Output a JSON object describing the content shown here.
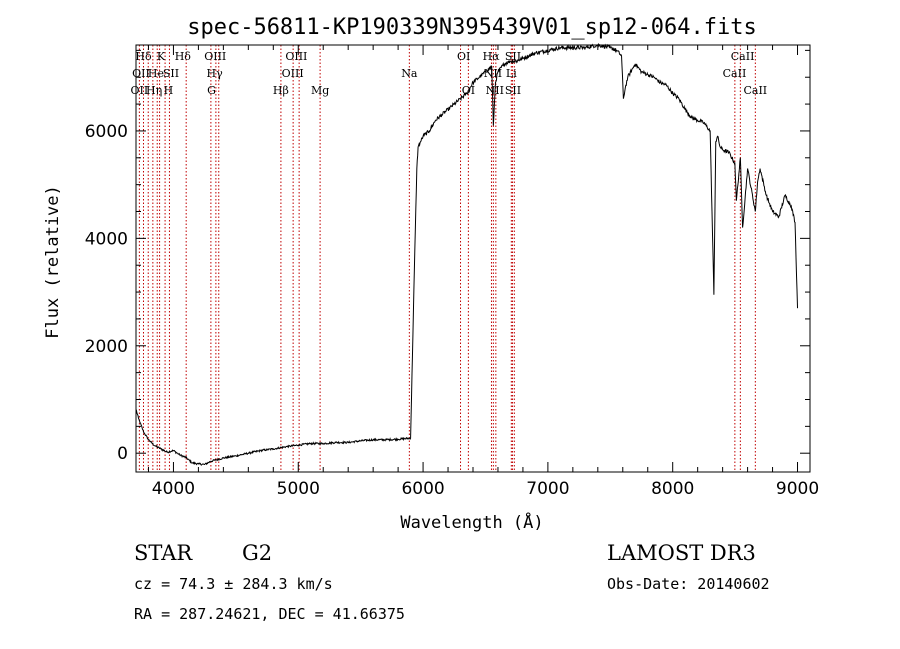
{
  "chart_data": {
    "type": "line",
    "title": "spec-56811-KP190339N395439V01_sp12-064.fits",
    "xlabel": "Wavelength (Å)",
    "ylabel": "Flux (relative)",
    "xlim": [
      3700,
      9100
    ],
    "ylim": [
      -350,
      7600
    ],
    "xticks": [
      4000,
      5000,
      6000,
      7000,
      8000,
      9000
    ],
    "yticks": [
      0,
      2000,
      4000,
      6000
    ],
    "series": [
      {
        "name": "flux",
        "x": [
          3700,
          3720,
          3760,
          3800,
          3850,
          3900,
          3950,
          4000,
          4050,
          4100,
          4150,
          4200,
          4250,
          4300,
          4400,
          4500,
          4600,
          4700,
          4800,
          4900,
          5000,
          5100,
          5200,
          5300,
          5400,
          5500,
          5600,
          5700,
          5800,
          5900,
          5930,
          5950,
          5960,
          5980,
          6000,
          6050,
          6100,
          6150,
          6200,
          6250,
          6300,
          6350,
          6400,
          6450,
          6500,
          6550,
          6563,
          6580,
          6600,
          6650,
          6700,
          6750,
          6800,
          6850,
          6900,
          7000,
          7100,
          7200,
          7300,
          7400,
          7500,
          7550,
          7590,
          7605,
          7620,
          7640,
          7700,
          7750,
          7800,
          7850,
          7900,
          7950,
          8000,
          8050,
          8100,
          8150,
          8200,
          8250,
          8300,
          8330,
          8345,
          8360,
          8380,
          8400,
          8450,
          8498,
          8510,
          8542,
          8560,
          8600,
          8662,
          8680,
          8700,
          8750,
          8800,
          8850,
          8900,
          8950,
          8980,
          9000
        ],
        "y": [
          820,
          650,
          400,
          250,
          140,
          80,
          20,
          50,
          -30,
          -80,
          -180,
          -200,
          -210,
          -150,
          -90,
          -50,
          0,
          50,
          80,
          120,
          150,
          180,
          180,
          200,
          200,
          230,
          250,
          250,
          260,
          280,
          3400,
          5300,
          5700,
          5800,
          5900,
          6000,
          6200,
          6300,
          6400,
          6500,
          6600,
          6700,
          6900,
          7000,
          7100,
          7200,
          6100,
          6900,
          7100,
          7250,
          7300,
          7300,
          7350,
          7400,
          7450,
          7500,
          7550,
          7550,
          7550,
          7600,
          7550,
          7500,
          7400,
          6600,
          6800,
          7000,
          7250,
          7100,
          7050,
          7000,
          6900,
          6850,
          6700,
          6600,
          6400,
          6250,
          6200,
          6150,
          6000,
          2950,
          5800,
          5900,
          5700,
          5650,
          5600,
          5400,
          4700,
          5500,
          4200,
          5300,
          4500,
          5050,
          5300,
          4800,
          4500,
          4400,
          4800,
          4600,
          4300,
          2700
        ]
      }
    ],
    "line_labels": [
      {
        "text": "Hδ",
        "wl": 3760,
        "row": 0
      },
      {
        "text": "K",
        "wl": 3900,
        "row": 0
      },
      {
        "text": "Hδ",
        "wl": 4075,
        "row": 0
      },
      {
        "text": "OIII",
        "wl": 4335,
        "row": 0
      },
      {
        "text": "OIII",
        "wl": 4985,
        "row": 0
      },
      {
        "text": "OI",
        "wl": 6325,
        "row": 0
      },
      {
        "text": "Hα",
        "wl": 6545,
        "row": 0
      },
      {
        "text": "SII",
        "wl": 6720,
        "row": 0
      },
      {
        "text": "CaII",
        "wl": 8560,
        "row": 0
      },
      {
        "text": "OII",
        "wl": 3740,
        "row": 1
      },
      {
        "text": "He",
        "wl": 3860,
        "row": 1
      },
      {
        "text": "SII",
        "wl": 3980,
        "row": 1
      },
      {
        "text": "Hγ",
        "wl": 4330,
        "row": 1
      },
      {
        "text": "OIII",
        "wl": 4955,
        "row": 1
      },
      {
        "text": "Na",
        "wl": 5890,
        "row": 1
      },
      {
        "text": "NII",
        "wl": 6560,
        "row": 1
      },
      {
        "text": "Li",
        "wl": 6707,
        "row": 1
      },
      {
        "text": "CaII",
        "wl": 8495,
        "row": 1
      },
      {
        "text": "OII",
        "wl": 3727,
        "row": 2
      },
      {
        "text": "Hη",
        "wl": 3845,
        "row": 2
      },
      {
        "text": "H",
        "wl": 3960,
        "row": 2
      },
      {
        "text": "G",
        "wl": 4305,
        "row": 2
      },
      {
        "text": "Hβ",
        "wl": 4861,
        "row": 2
      },
      {
        "text": "Mg",
        "wl": 5175,
        "row": 2
      },
      {
        "text": "OI",
        "wl": 6363,
        "row": 2
      },
      {
        "text": "NII",
        "wl": 6575,
        "row": 2
      },
      {
        "text": "SII",
        "wl": 6720,
        "row": 2
      },
      {
        "text": "CaII",
        "wl": 8662,
        "row": 2
      }
    ],
    "line_markers": [
      3727,
      3760,
      3798,
      3835,
      3870,
      3889,
      3933,
      3968,
      4102,
      4300,
      4340,
      4363,
      4861,
      4959,
      5007,
      5175,
      5890,
      6300,
      6363,
      6548,
      6563,
      6583,
      6707,
      6716,
      6731,
      8498,
      8542,
      8662
    ]
  },
  "info": {
    "object_class": "STAR",
    "subclass": "G2",
    "survey": "LAMOST DR3",
    "cz": "cz = 74.3 ± 284.3 km/s",
    "obs_date": "Obs-Date: 20140602",
    "coords": "RA = 287.24621, DEC =  41.66375"
  },
  "colors": {
    "axis": "#000000",
    "spectrum": "#000000",
    "marker_line": "#c00000",
    "background": "#ffffff"
  }
}
